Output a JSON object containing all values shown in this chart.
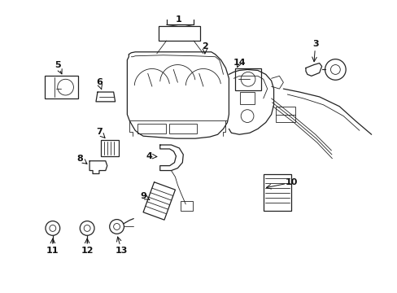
{
  "background_color": "#ffffff",
  "line_color": "#222222",
  "text_color": "#111111",
  "fig_width": 4.89,
  "fig_height": 3.6,
  "dpi": 100
}
